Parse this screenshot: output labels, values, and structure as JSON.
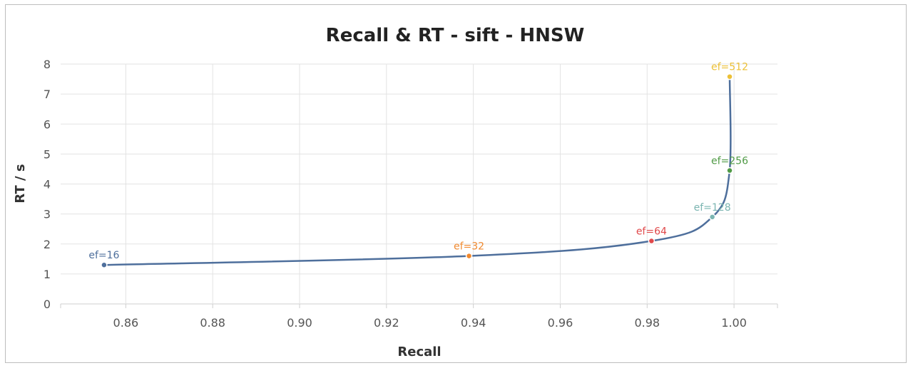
{
  "chart_data": {
    "type": "line",
    "title": "Recall & RT - sift - HNSW",
    "xlabel": "Recall",
    "ylabel": "RT / s",
    "xlim": [
      0.845,
      1.01
    ],
    "ylim": [
      0,
      8
    ],
    "x_ticks": [
      "0.86",
      "0.88",
      "0.90",
      "0.92",
      "0.94",
      "0.96",
      "0.98",
      "1.00"
    ],
    "x_tick_values": [
      0.86,
      0.88,
      0.9,
      0.92,
      0.94,
      0.96,
      0.98,
      1.0
    ],
    "y_ticks": [
      "0",
      "1",
      "2",
      "3",
      "4",
      "5",
      "6",
      "7",
      "8"
    ],
    "y_tick_values": [
      0,
      1,
      2,
      3,
      4,
      5,
      6,
      7,
      8
    ],
    "grid": true,
    "line_color": "#4e6f9c",
    "points": [
      {
        "label": "ef=16",
        "x": 0.855,
        "y": 1.3,
        "color": "#4e6f9c"
      },
      {
        "label": "ef=32",
        "x": 0.939,
        "y": 1.6,
        "color": "#f0892f"
      },
      {
        "label": "ef=64",
        "x": 0.981,
        "y": 2.1,
        "color": "#e0484a"
      },
      {
        "label": "ef=128",
        "x": 0.995,
        "y": 2.9,
        "color": "#7bb5b1"
      },
      {
        "label": "ef=256",
        "x": 0.999,
        "y": 4.45,
        "color": "#4f9a45"
      },
      {
        "label": "ef=512",
        "x": 0.999,
        "y": 7.58,
        "color": "#ecc037"
      }
    ]
  }
}
